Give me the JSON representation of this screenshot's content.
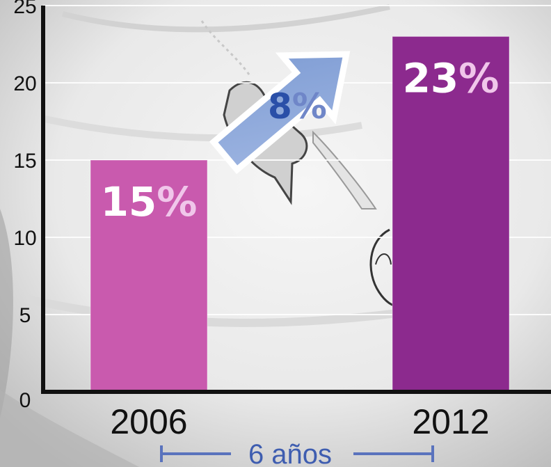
{
  "colors": {
    "bar_2006": "#c95aae",
    "bar_2012": "#8c2a8e",
    "arrow": "#8aa7da",
    "span_line": "#5a73bd",
    "axis": "#111111"
  },
  "icons": {
    "background": "stamped-envelope-photo",
    "growth": "up-right-arrow-icon"
  },
  "chart_data": {
    "type": "bar",
    "categories": [
      "2006",
      "2012"
    ],
    "values": [
      15,
      23
    ],
    "data_labels": [
      "15%",
      "23%"
    ],
    "ylim": [
      0,
      25
    ],
    "yticks": [
      0,
      5,
      10,
      15,
      20,
      25
    ],
    "grid": true,
    "title": "",
    "xlabel": "",
    "ylabel": "",
    "annotations": {
      "growth_label": "8%",
      "span_label": "6 años"
    }
  }
}
